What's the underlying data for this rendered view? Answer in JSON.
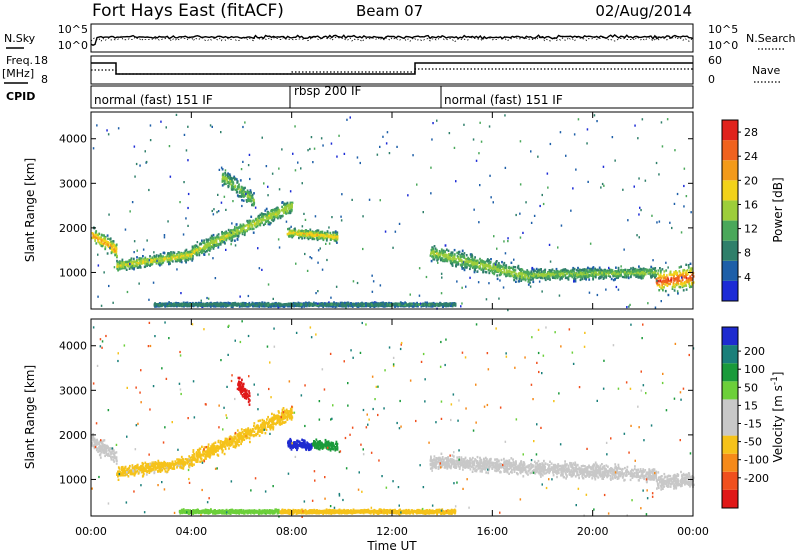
{
  "header": {
    "station": "Fort Hays East (fitACF)",
    "beam": "Beam 07",
    "date": "02/Aug/2014"
  },
  "panels": {
    "nsky_label": "N.Sky",
    "nsearch_label": "N.Search",
    "nsky_ticks": [
      "10^5",
      "10^0"
    ],
    "freq_label_line1": "Freq.",
    "freq_label_line2": "[MHz]",
    "freq_ticks": [
      "18",
      "8"
    ],
    "nave_label": "Nave",
    "nave_ticks": [
      "60",
      "0"
    ],
    "cpid_label": "CPID",
    "cpid_modes": [
      "normal (fast) 151 IF",
      "rbsp 200 IF",
      "normal (fast) 151 IF"
    ]
  },
  "colors": {
    "power_scale": [
      "#1c2bd6",
      "#1e5fa8",
      "#2f7f6a",
      "#4aa85a",
      "#9dce3a",
      "#f2d21a",
      "#f39a1a",
      "#f0621e",
      "#e0221c"
    ],
    "velocity_scale": [
      "#1e2bd0",
      "#1a7f7a",
      "#1a9a3a",
      "#6ccf3a",
      "#c8c8c8",
      "#c8c8c8",
      "#f5c21a",
      "#f58a1a",
      "#f0501e",
      "#e01818"
    ]
  },
  "chart_data": [
    {
      "type": "heatmap",
      "title": "",
      "xlabel": "Time UT",
      "ylabel": "Slant Range [km]",
      "x_range_hours": [
        0,
        24
      ],
      "ylim": [
        180,
        4600
      ],
      "x_ticks": [
        "00:00",
        "04:00",
        "08:00",
        "12:00",
        "16:00",
        "20:00",
        "00:00"
      ],
      "y_ticks": [
        1000,
        2000,
        3000,
        4000
      ],
      "colorbar": {
        "label": "Power [dB]",
        "ticks": [
          4,
          8,
          12,
          16,
          20,
          24,
          28
        ],
        "range": [
          0,
          30
        ]
      },
      "echo_bands": [
        {
          "start_h": 0.0,
          "end_h": 1.0,
          "range_start_km": 1850,
          "range_end_km": 1500,
          "width_km": 500,
          "peak_db": 22
        },
        {
          "start_h": 1.0,
          "end_h": 4.0,
          "range_start_km": 1150,
          "range_end_km": 1400,
          "width_km": 350,
          "peak_db": 18
        },
        {
          "start_h": 4.0,
          "end_h": 8.0,
          "range_start_km": 1450,
          "range_end_km": 2500,
          "width_km": 450,
          "peak_db": 17
        },
        {
          "start_h": 5.2,
          "end_h": 6.5,
          "range_start_km": 3150,
          "range_end_km": 2600,
          "width_km": 500,
          "peak_db": 15
        },
        {
          "start_h": 7.8,
          "end_h": 9.8,
          "range_start_km": 1900,
          "range_end_km": 1800,
          "width_km": 300,
          "peak_db": 20
        },
        {
          "start_h": 13.5,
          "end_h": 17.5,
          "range_start_km": 1450,
          "range_end_km": 900,
          "width_km": 500,
          "peak_db": 16
        },
        {
          "start_h": 17.5,
          "end_h": 22.5,
          "range_start_km": 950,
          "range_end_km": 1000,
          "width_km": 350,
          "peak_db": 15
        },
        {
          "start_h": 22.5,
          "end_h": 24.0,
          "range_start_km": 800,
          "range_end_km": 900,
          "width_km": 700,
          "peak_db": 27
        },
        {
          "start_h": 2.5,
          "end_h": 14.5,
          "range_start_km": 280,
          "range_end_km": 280,
          "width_km": 120,
          "peak_db": 10
        }
      ]
    },
    {
      "type": "heatmap",
      "title": "",
      "xlabel": "Time UT",
      "ylabel": "Slant Range [km]",
      "x_range_hours": [
        0,
        24
      ],
      "ylim": [
        180,
        4600
      ],
      "x_ticks": [
        "00:00",
        "04:00",
        "08:00",
        "12:00",
        "16:00",
        "20:00",
        "00:00"
      ],
      "y_ticks": [
        1000,
        2000,
        3000,
        4000
      ],
      "colorbar": {
        "label": "Velocity [m s^-1]",
        "ticks": [
          "200",
          "100",
          "50",
          "15",
          "-15",
          "-50",
          "-100",
          "-200"
        ],
        "range": [
          -250,
          250
        ]
      },
      "echo_bands": [
        {
          "start_h": 0.0,
          "end_h": 1.0,
          "range_start_km": 1850,
          "range_end_km": 1500,
          "width_km": 500,
          "velocity": 0
        },
        {
          "start_h": 1.0,
          "end_h": 4.0,
          "range_start_km": 1150,
          "range_end_km": 1400,
          "width_km": 350,
          "velocity": -20
        },
        {
          "start_h": 4.0,
          "end_h": 8.0,
          "range_start_km": 1450,
          "range_end_km": 2500,
          "width_km": 450,
          "velocity": -30
        },
        {
          "start_h": 5.8,
          "end_h": 6.3,
          "range_start_km": 3200,
          "range_end_km": 2800,
          "width_km": 500,
          "velocity": -220
        },
        {
          "start_h": 7.8,
          "end_h": 8.8,
          "range_start_km": 1800,
          "range_end_km": 1750,
          "width_km": 300,
          "velocity": 210
        },
        {
          "start_h": 8.8,
          "end_h": 9.8,
          "range_start_km": 1800,
          "range_end_km": 1750,
          "width_km": 300,
          "velocity": 60
        },
        {
          "start_h": 13.5,
          "end_h": 22.5,
          "range_start_km": 1400,
          "range_end_km": 1100,
          "width_km": 450,
          "velocity": 0
        },
        {
          "start_h": 22.5,
          "end_h": 24.0,
          "range_start_km": 950,
          "range_end_km": 1000,
          "width_km": 500,
          "velocity": 0
        },
        {
          "start_h": 3.5,
          "end_h": 7.5,
          "range_start_km": 280,
          "range_end_km": 280,
          "width_km": 120,
          "velocity": 40
        },
        {
          "start_h": 7.5,
          "end_h": 14.5,
          "range_start_km": 280,
          "range_end_km": 280,
          "width_km": 120,
          "velocity": -40
        }
      ]
    }
  ]
}
